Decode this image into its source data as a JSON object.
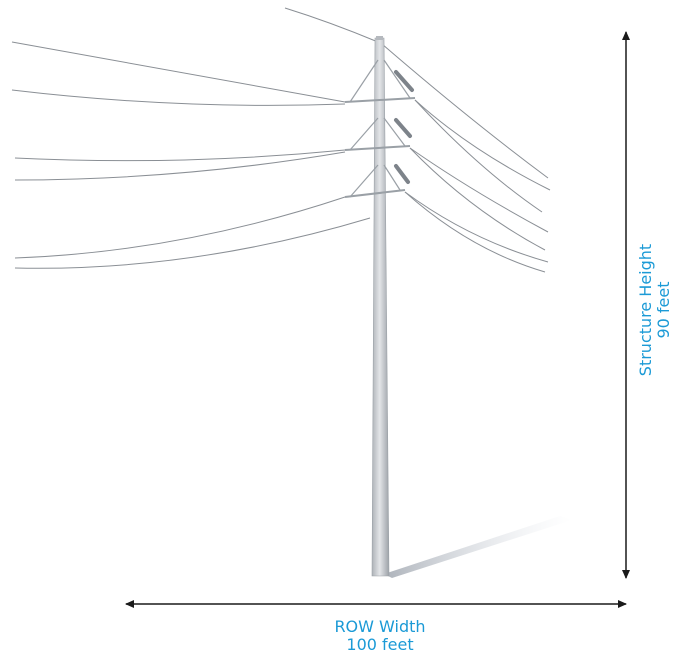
{
  "height_dimension": {
    "title": "Structure Height",
    "value": "90 feet"
  },
  "row_dimension": {
    "title": "ROW Width",
    "value": "100 feet"
  },
  "colors": {
    "label": "#1b9ad6",
    "arrow": "#1a1a1a",
    "pole": "#c9ccd0",
    "wire": "#8a8f95"
  }
}
